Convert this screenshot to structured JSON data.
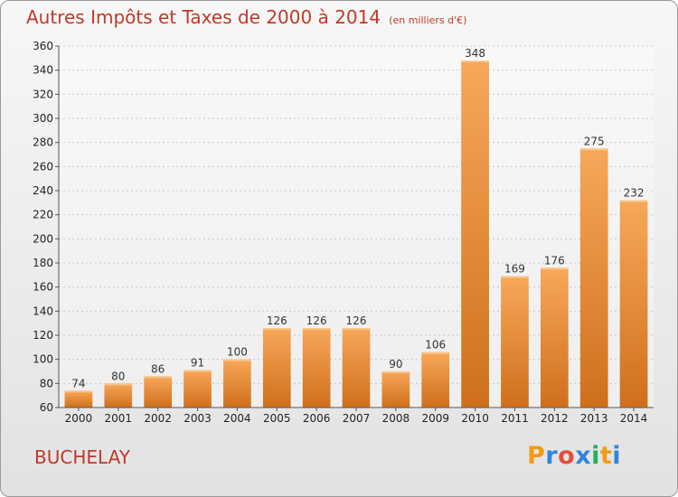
{
  "header": {
    "title": "Autres Impôts et Taxes de 2000 à 2014",
    "subtitle": "(en milliers d'€)"
  },
  "footer": {
    "city": "BUCHELAY",
    "logo": "Proxiti",
    "logo_letter_colors": [
      "#f39c12",
      "#2e86de",
      "#e74c3c",
      "#2e86de",
      "#27ae60",
      "#f39c12",
      "#2e86de"
    ]
  },
  "chart_data": {
    "type": "bar",
    "title": "Autres Impôts et Taxes de 2000 à 2014",
    "categories": [
      "2000",
      "2001",
      "2002",
      "2003",
      "2004",
      "2005",
      "2006",
      "2007",
      "2008",
      "2009",
      "2010",
      "2011",
      "2012",
      "2013",
      "2014"
    ],
    "values": [
      74,
      80,
      86,
      91,
      100,
      126,
      126,
      126,
      90,
      106,
      348,
      169,
      176,
      275,
      232
    ],
    "ylim": [
      60,
      360
    ],
    "yticks": [
      60,
      80,
      100,
      120,
      140,
      160,
      180,
      200,
      220,
      240,
      260,
      280,
      300,
      320,
      340,
      360
    ],
    "grid": true,
    "bar_color_top": "#f7a85a",
    "bar_color_bottom": "#cf6f1c"
  }
}
